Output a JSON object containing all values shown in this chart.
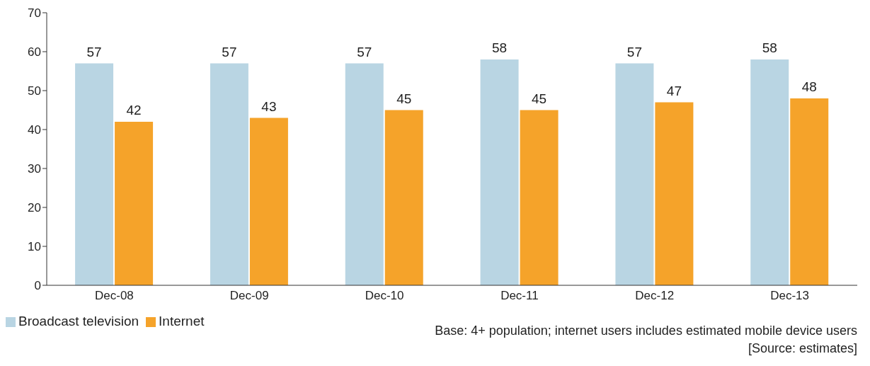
{
  "chart_data": {
    "type": "bar",
    "categories": [
      "Dec-08",
      "Dec-09",
      "Dec-10",
      "Dec-11",
      "Dec-12",
      "Dec-13"
    ],
    "series": [
      {
        "name": "Broadcast television",
        "color": "#b9d5e3",
        "values": [
          57,
          57,
          57,
          58,
          57,
          58
        ]
      },
      {
        "name": "Internet",
        "color": "#f5a32a",
        "values": [
          42,
          43,
          45,
          45,
          47,
          48
        ]
      }
    ],
    "ylim": [
      0,
      70
    ],
    "yticks": [
      0,
      10,
      20,
      30,
      40,
      50,
      60,
      70
    ],
    "grid": false,
    "data_labels": true,
    "legend": "bottom left",
    "annotations": [
      "Base: 4+ population; internet users includes estimated mobile device users",
      "[Source: estimates]"
    ]
  }
}
